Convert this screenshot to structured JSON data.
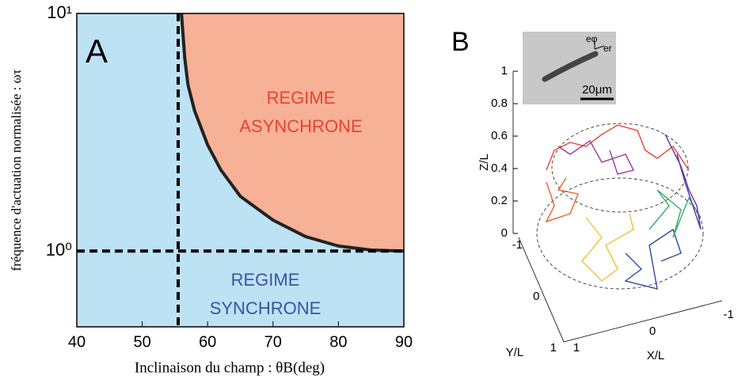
{
  "chart_data": [
    {
      "type": "phase",
      "panel_label": "A",
      "x_label": "Inclinaison du champ :  θB(deg)",
      "y_label": "fréquence d'actuation normalisée : ωτ",
      "xlim": [
        40,
        90
      ],
      "xticks": [
        40,
        50,
        60,
        70,
        80,
        90
      ],
      "ylim": [
        0.48,
        10
      ],
      "log_y": true,
      "yticks": [
        {
          "value": 1,
          "label": "10⁰"
        },
        {
          "value": 10,
          "label": "10¹"
        }
      ],
      "boundary": {
        "x": [
          56,
          56.5,
          57,
          58,
          60,
          62,
          65,
          70,
          75,
          80,
          85,
          90
        ],
        "y": [
          10,
          6.5,
          5,
          3.9,
          2.8,
          2.2,
          1.7,
          1.35,
          1.15,
          1.05,
          1.01,
          1.0
        ],
        "color": "#222222"
      },
      "threshold_x": 55.5,
      "threshold_y": 1,
      "regions": [
        {
          "lines": [
            "REGIME",
            "ASYNCHRONE"
          ],
          "color": "#f6b197",
          "text_color": "#e8432f"
        },
        {
          "lines": [
            "REGIME",
            "SYNCHRONE"
          ],
          "color": "#bde2f4",
          "text_color": "#3b52a3"
        }
      ]
    },
    {
      "type": "scatter3d",
      "panel_label": "B",
      "x_label": "X/L",
      "y_label": "Y/L",
      "z_label": "Z/L",
      "zticks": [
        0,
        0.2,
        0.4,
        0.6,
        0.8,
        1
      ],
      "yticks": [
        -1,
        0,
        1
      ],
      "xticks": [
        1,
        0,
        -1
      ],
      "scale_bar": "20μm",
      "vector_labels": [
        "eφ",
        "er"
      ]
    }
  ]
}
